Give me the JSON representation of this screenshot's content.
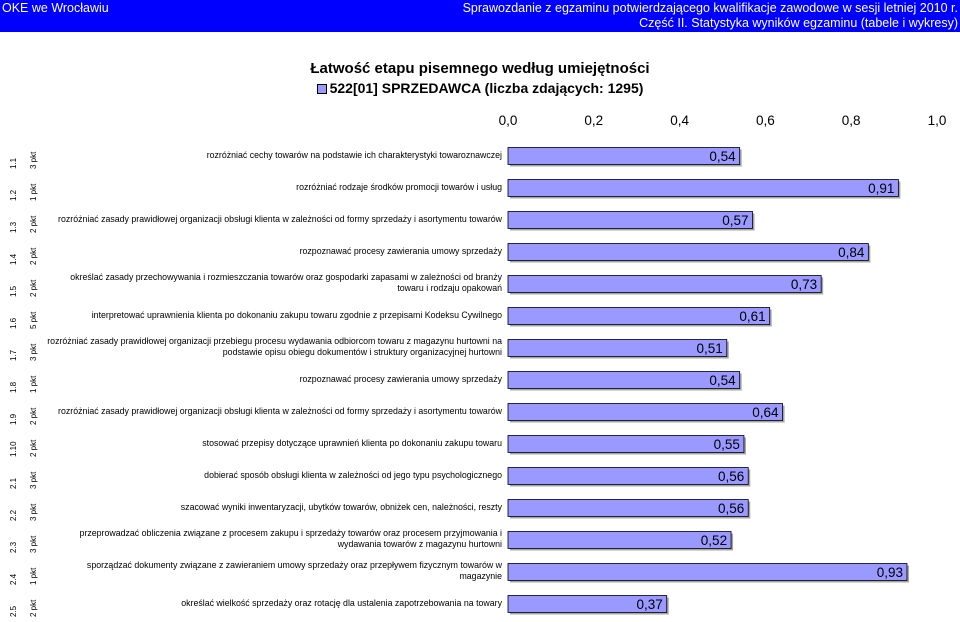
{
  "header": {
    "left": "OKE we Wrocławiu",
    "right_line1": "Sprawozdanie z egzaminu potwierdzającego kwalifikacje zawodowe w sesji letniej 2010 r.",
    "right_line2": "Część II. Statystyka wyników egzaminu  (tabele i wykresy)"
  },
  "colors": {
    "bar": "#9999ff",
    "header_bg": "#0000ff"
  },
  "chart_data": {
    "type": "bar",
    "orientation": "horizontal",
    "title": "Łatwość etapu pisemnego według umiejętności",
    "legend": [
      "522[01] SPRZEDAWCA (liczba zdających: 1295)"
    ],
    "legend_placement": "top",
    "xlim": [
      0,
      1
    ],
    "x_ticks": [
      "0,0",
      "0,2",
      "0,4",
      "0,6",
      "0,8",
      "1,0"
    ],
    "grid": false,
    "series": [
      {
        "name": "522[01] SPRZEDAWCA (liczba zdających: 1295)",
        "values": [
          0.54,
          0.91,
          0.57,
          0.84,
          0.73,
          0.61,
          0.51,
          0.54,
          0.64,
          0.55,
          0.56,
          0.56,
          0.52,
          0.93,
          0.37
        ],
        "labels": [
          "0,54",
          "0,91",
          "0,57",
          "0,84",
          "0,73",
          "0,61",
          "0,51",
          "0,54",
          "0,64",
          "0,55",
          "0,56",
          "0,56",
          "0,52",
          "0,93",
          "0,37"
        ]
      }
    ],
    "categories": [
      {
        "id": "1.1",
        "points": "3 pkt",
        "skill": "rozróżniać cechy towarów na podstawie ich charakterystyki towaroznawczej"
      },
      {
        "id": "1.2",
        "points": "1 pkt",
        "skill": "rozróżniać rodzaje środków promocji towarów i usług"
      },
      {
        "id": "1.3",
        "points": "2 pkt",
        "skill": "rozróżniać zasady prawidłowej organizacji obsługi klienta w zależności od formy sprzedaży i asortymentu towarów"
      },
      {
        "id": "1.4",
        "points": "2 pkt",
        "skill": "rozpoznawać procesy zawierania umowy sprzedaży"
      },
      {
        "id": "1.5",
        "points": "2 pkt",
        "skill": "określać zasady przechowywania i rozmieszczania towarów oraz gospodarki zapasami w zależności od branży towaru i rodzaju opakowań"
      },
      {
        "id": "1.6",
        "points": "5 pkt",
        "skill": "interpretować uprawnienia klienta po dokonaniu zakupu towaru zgodnie z przepisami Kodeksu Cywilnego"
      },
      {
        "id": "1.7",
        "points": "3 pkt",
        "skill": "rozróżniać zasady prawidłowej organizacji przebiegu procesu wydawania odbiorcom towaru z magazynu hurtowni na podstawie opisu obiegu dokumentów i struktury organizacyjnej hurtowni"
      },
      {
        "id": "1.8",
        "points": "1 pkt",
        "skill": "rozpoznawać procesy zawierania umowy sprzedaży"
      },
      {
        "id": "1.9",
        "points": "2 pkt",
        "skill": "rozróżniać zasady prawidłowej organizacji obsługi klienta w zależności od formy sprzedaży i asortymentu towarów"
      },
      {
        "id": "1.10",
        "points": "2 pkt",
        "skill": "stosować przepisy dotyczące uprawnień klienta po dokonaniu zakupu towaru"
      },
      {
        "id": "2.1",
        "points": "3 pkt",
        "skill": "dobierać sposób obsługi klienta w zależności od jego typu psychologicznego"
      },
      {
        "id": "2.2",
        "points": "3 pkt",
        "skill": "szacować wyniki inwentaryzacji, ubytków towarów, obniżek cen, należności, reszty"
      },
      {
        "id": "2.3",
        "points": "3 pkt",
        "skill": "przeprowadzać obliczenia związane z procesem zakupu i sprzedaży towarów oraz procesem przyjmowania i wydawania towarów z magazynu hurtowni"
      },
      {
        "id": "2.4",
        "points": "1 pkt",
        "skill": "sporządzać dokumenty związane z zawieraniem umowy sprzedaży oraz przepływem fizycznym towarów w magazynie"
      },
      {
        "id": "2.5",
        "points": "2 pkt",
        "skill": "określać wielkość sprzedaży oraz rotację dla ustalenia zapotrzebowania na towary"
      }
    ]
  }
}
